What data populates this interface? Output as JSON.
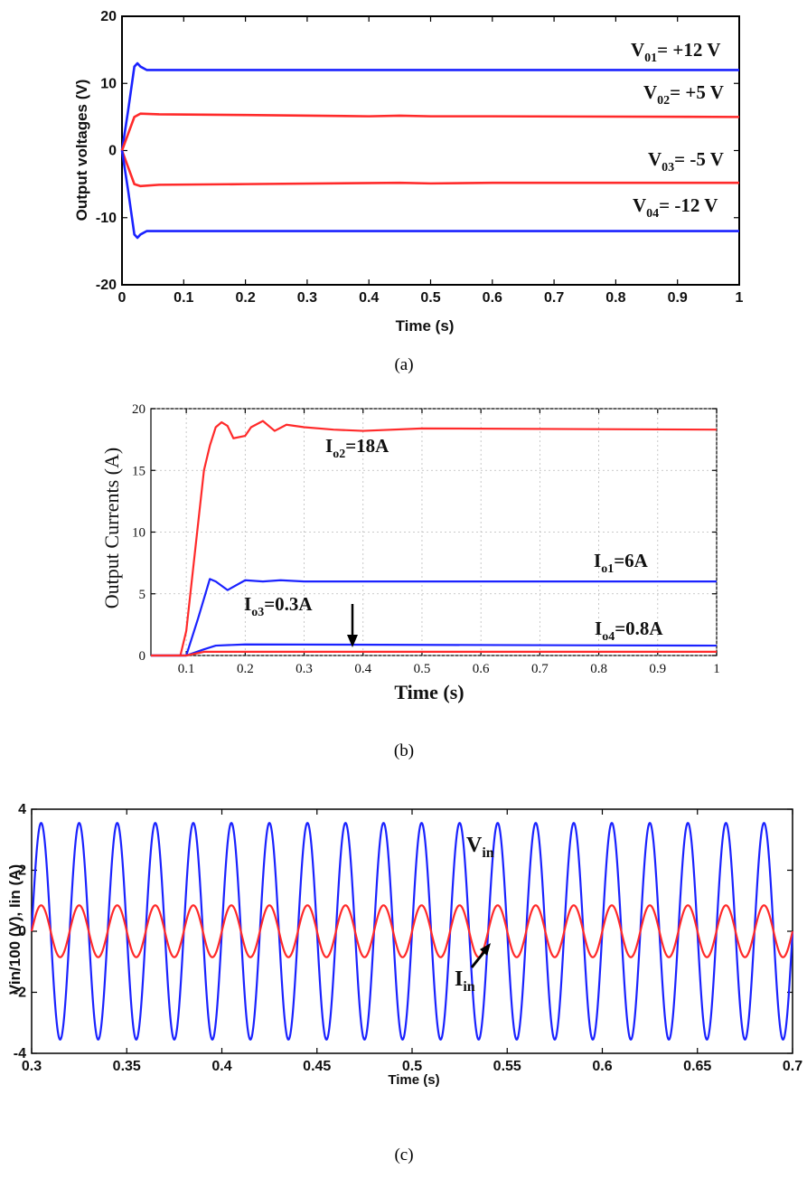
{
  "colors": {
    "blue": "#1a22ff",
    "red": "#ff2a2a",
    "axis": "#000000"
  },
  "captions": [
    "(a)",
    "(b)",
    "(c)"
  ],
  "chart_data": [
    {
      "type": "line",
      "caption": "(a)",
      "xlabel": "Time (s)",
      "ylabel": "Output voltages (V)",
      "xlim": [
        0,
        1
      ],
      "ylim": [
        -20,
        20
      ],
      "xticks": [
        "0",
        "0.1",
        "0.2",
        "0.3",
        "0.4",
        "0.5",
        "0.6",
        "0.7",
        "0.8",
        "0.9",
        "1"
      ],
      "yticks": [
        "-20",
        "-10",
        "0",
        "10",
        "20"
      ],
      "annotations": [
        {
          "main": "V",
          "sub": "01",
          "tail": "= +12 V"
        },
        {
          "main": "V",
          "sub": "02",
          "tail": "= +5 V"
        },
        {
          "main": "V",
          "sub": "03",
          "tail": "= -5 V"
        },
        {
          "main": "V",
          "sub": "04",
          "tail": "= -12 V"
        }
      ],
      "series": [
        {
          "color": "blue",
          "steady": 12,
          "points": [
            [
              0,
              0
            ],
            [
              0.01,
              6
            ],
            [
              0.02,
              12.5
            ],
            [
              0.025,
              13
            ],
            [
              0.03,
              12.5
            ],
            [
              0.04,
              12
            ],
            [
              1,
              12
            ]
          ]
        },
        {
          "color": "red",
          "steady": 5,
          "points": [
            [
              0,
              0
            ],
            [
              0.01,
              2.5
            ],
            [
              0.02,
              5
            ],
            [
              0.03,
              5.5
            ],
            [
              0.06,
              5.4
            ],
            [
              0.2,
              5.3
            ],
            [
              0.4,
              5.1
            ],
            [
              0.45,
              5.2
            ],
            [
              0.5,
              5.1
            ],
            [
              0.6,
              5.1
            ],
            [
              1,
              5
            ]
          ]
        },
        {
          "color": "red",
          "steady": -5,
          "points": [
            [
              0,
              0
            ],
            [
              0.01,
              -2.5
            ],
            [
              0.02,
              -5
            ],
            [
              0.03,
              -5.3
            ],
            [
              0.06,
              -5.1
            ],
            [
              0.2,
              -5
            ],
            [
              0.45,
              -4.8
            ],
            [
              0.5,
              -4.9
            ],
            [
              0.6,
              -4.8
            ],
            [
              1,
              -4.8
            ]
          ]
        },
        {
          "color": "blue",
          "steady": -12,
          "points": [
            [
              0,
              0
            ],
            [
              0.01,
              -6
            ],
            [
              0.02,
              -12.5
            ],
            [
              0.025,
              -13
            ],
            [
              0.03,
              -12.5
            ],
            [
              0.04,
              -12
            ],
            [
              1,
              -12
            ]
          ]
        }
      ]
    },
    {
      "type": "line",
      "caption": "(b)",
      "xlabel": "Time (s)",
      "ylabel": "Output Currents (A)",
      "xlim": [
        0.04,
        1
      ],
      "ylim": [
        0,
        20
      ],
      "xticks": [
        "0.1",
        "0.2",
        "0.3",
        "0.4",
        "0.5",
        "0.6",
        "0.7",
        "0.8",
        "0.9",
        "1"
      ],
      "yticks": [
        "0",
        "5",
        "10",
        "15",
        "20"
      ],
      "annotations": [
        {
          "main": "I",
          "sub": "o2",
          "tail": "=18A"
        },
        {
          "main": "I",
          "sub": "o1",
          "tail": "=6A"
        },
        {
          "main": "I",
          "sub": "o3",
          "tail": "=0.3A"
        },
        {
          "main": "I",
          "sub": "o4",
          "tail": "=0.8A"
        }
      ],
      "series": [
        {
          "color": "red",
          "steady": 18,
          "points": [
            [
              0.04,
              0
            ],
            [
              0.09,
              0
            ],
            [
              0.1,
              2
            ],
            [
              0.13,
              15
            ],
            [
              0.14,
              17
            ],
            [
              0.15,
              18.5
            ],
            [
              0.16,
              18.9
            ],
            [
              0.17,
              18.6
            ],
            [
              0.18,
              17.6
            ],
            [
              0.2,
              17.8
            ],
            [
              0.21,
              18.5
            ],
            [
              0.23,
              19
            ],
            [
              0.25,
              18.2
            ],
            [
              0.27,
              18.7
            ],
            [
              0.3,
              18.5
            ],
            [
              0.35,
              18.3
            ],
            [
              0.4,
              18.2
            ],
            [
              0.5,
              18.4
            ],
            [
              1,
              18.3
            ]
          ]
        },
        {
          "color": "blue",
          "steady": 6,
          "points": [
            [
              0.04,
              0
            ],
            [
              0.1,
              0
            ],
            [
              0.12,
              3
            ],
            [
              0.14,
              6.2
            ],
            [
              0.15,
              6
            ],
            [
              0.17,
              5.3
            ],
            [
              0.2,
              6.1
            ],
            [
              0.23,
              6
            ],
            [
              0.26,
              6.1
            ],
            [
              0.3,
              6
            ],
            [
              1,
              6
            ]
          ]
        },
        {
          "color": "blue",
          "steady": 0.8,
          "points": [
            [
              0.04,
              0
            ],
            [
              0.1,
              0
            ],
            [
              0.13,
              0.5
            ],
            [
              0.15,
              0.8
            ],
            [
              0.2,
              0.9
            ],
            [
              1,
              0.8
            ]
          ]
        },
        {
          "color": "red",
          "steady": 0.3,
          "points": [
            [
              0.04,
              0
            ],
            [
              0.1,
              0
            ],
            [
              0.13,
              0.3
            ],
            [
              1,
              0.3
            ]
          ]
        }
      ]
    },
    {
      "type": "line",
      "caption": "(c)",
      "xlabel": "Time (s)",
      "ylabel": "Vin/100 (V), Iin (A)",
      "xlim": [
        0.3,
        0.7
      ],
      "ylim": [
        -4,
        4
      ],
      "xticks": [
        "0.3",
        "0.35",
        "0.4",
        "0.45",
        "0.5",
        "0.55",
        "0.6",
        "0.65",
        "0.7"
      ],
      "yticks": [
        "-4",
        "-2",
        "0",
        "2",
        "4"
      ],
      "annotations": [
        {
          "main": "V",
          "sub": "in",
          "tail": ""
        },
        {
          "main": "I",
          "sub": "in",
          "tail": ""
        }
      ],
      "series": [
        {
          "color": "blue",
          "type": "sine",
          "amplitude": 3.55,
          "frequency_hz": 50
        },
        {
          "color": "red",
          "type": "sine",
          "amplitude": 0.85,
          "frequency_hz": 50
        }
      ]
    }
  ]
}
